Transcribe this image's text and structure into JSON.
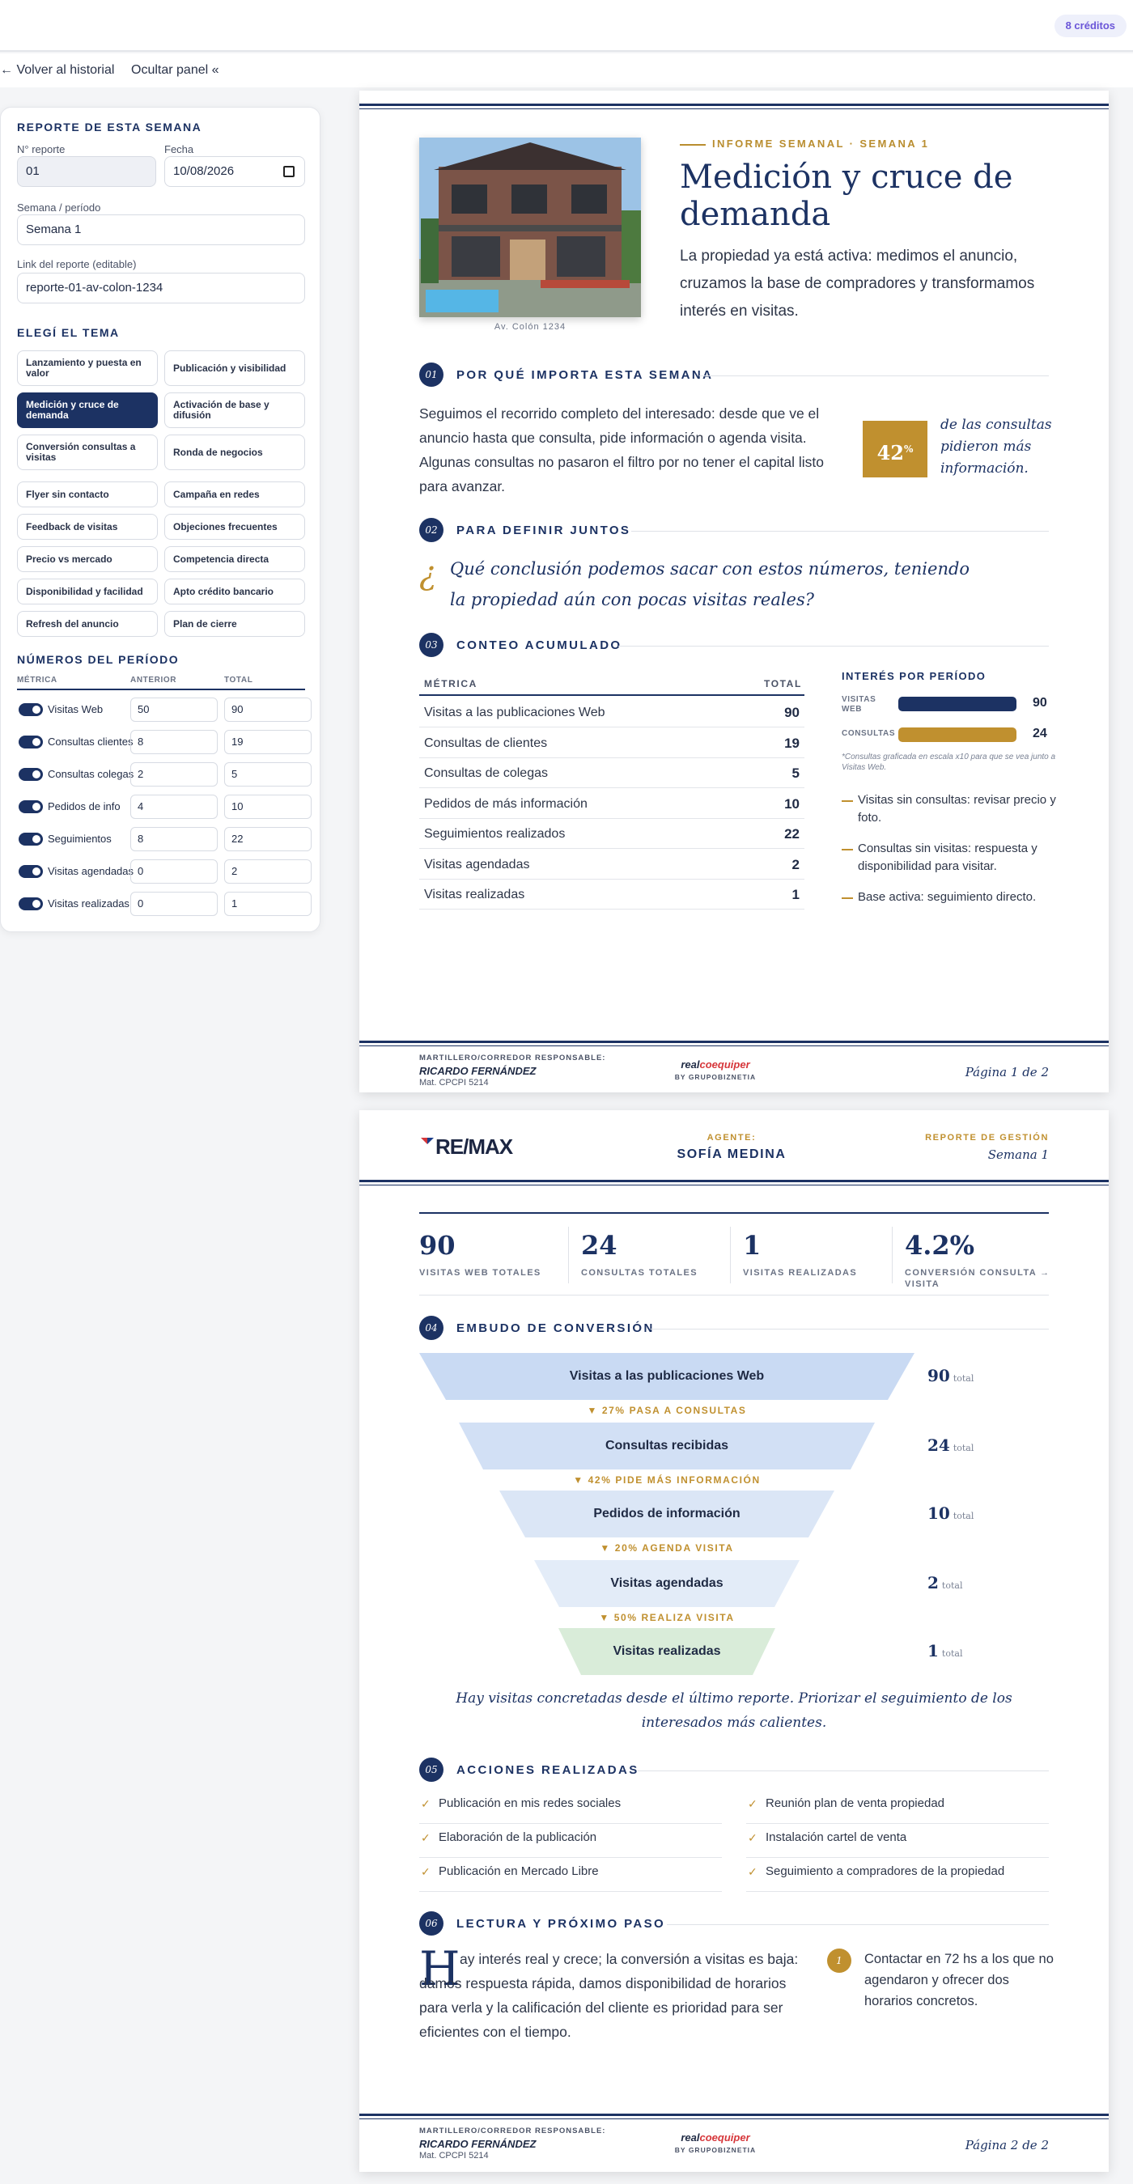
{
  "topbar": {
    "credits": "8 créditos"
  },
  "nav": {
    "back": "← Volver al historial",
    "hide_panel": "Ocultar panel «"
  },
  "sidebar": {
    "report_heading": "REPORTE DE ESTA SEMANA",
    "report_number_label": "N° reporte",
    "report_number_value": "01",
    "date_label": "Fecha",
    "date_value": "10/08/2026",
    "week_label": "Semana / período",
    "week_value": "Semana 1",
    "link_label": "Link del reporte (editable)",
    "link_value": "reporte-01-av-colon-1234",
    "topic_heading": "ELEGÍ EL TEMA",
    "topics": [
      "Lanzamiento y puesta en valor",
      "Publicación y visibilidad",
      "Medición y cruce de demanda",
      "Activación de base y difusión",
      "Conversión consultas a visitas",
      "Ronda de negocios",
      "Flyer sin contacto",
      "Campaña en redes",
      "Feedback de visitas",
      "Objeciones frecuentes",
      "Precio vs mercado",
      "Competencia directa",
      "Disponibilidad y facilidad",
      "Apto crédito bancario",
      "Refresh del anuncio",
      "Plan de cierre"
    ],
    "active_topic": "Medición y cruce de demanda",
    "numbers_heading": "NÚMEROS DEL PERÍODO",
    "metric_columns": [
      "MÉTRICA",
      "ANTERIOR",
      "TOTAL"
    ],
    "metrics": [
      {
        "name": "Visitas Web",
        "prev": "50",
        "total": "90"
      },
      {
        "name": "Consultas clientes",
        "prev": "8",
        "total": "19"
      },
      {
        "name": "Consultas colegas",
        "prev": "2",
        "total": "5"
      },
      {
        "name": "Pedidos de info",
        "prev": "4",
        "total": "10"
      },
      {
        "name": "Seguimientos",
        "prev": "8",
        "total": "22"
      },
      {
        "name": "Visitas agendadas",
        "prev": "0",
        "total": "2"
      },
      {
        "name": "Visitas realizadas",
        "prev": "0",
        "total": "1"
      }
    ]
  },
  "page1": {
    "photo_caption": "Av. Colón 1234",
    "eyebrow": "INFORME SEMANAL · SEMANA 1",
    "title": "Medición y cruce de demanda",
    "lead": "La propiedad ya está activa: medimos el anuncio, cruzamos la base de compradores y transformamos interés en visitas.",
    "s1_num": "01",
    "s1_title": "POR QUÉ IMPORTA ESTA SEMANA",
    "s1_text": "Seguimos el recorrido completo del interesado: desde que ve el anuncio hasta que consulta, pide información o agenda visita. Algunas consultas no pasaron el filtro por no tener el capital listo para avanzar.",
    "stat_value": "42",
    "stat_unit": "%",
    "stat_caption": "de las consultas pidieron más información.",
    "s2_num": "02",
    "s2_title": "PARA DEFINIR JUNTOS",
    "question_mark": "¿",
    "question": "Qué conclusión podemos sacar con estos números, teniendo la propiedad aún con pocas visitas reales?",
    "s3_num": "03",
    "s3_title": "CONTEO ACUMULADO",
    "table_head": [
      "MÉTRICA",
      "TOTAL"
    ],
    "table_rows": [
      {
        "label": "Visitas a las publicaciones Web",
        "value": "90"
      },
      {
        "label": "Consultas de clientes",
        "value": "19"
      },
      {
        "label": "Consultas de colegas",
        "value": "5"
      },
      {
        "label": "Pedidos de más información",
        "value": "10"
      },
      {
        "label": "Seguimientos realizados",
        "value": "22"
      },
      {
        "label": "Visitas agendadas",
        "value": "2"
      },
      {
        "label": "Visitas realizadas",
        "value": "1"
      }
    ],
    "interest_title": "INTERÉS POR PERÍODO",
    "interest": [
      {
        "label": "VISITAS WEB",
        "value": "90",
        "fill": 1.0,
        "color": "#1c3263"
      },
      {
        "label": "CONSULTAS",
        "value": "24",
        "fill": 1.0,
        "color": "#c0902f"
      }
    ],
    "interest_note": "*Consultas graficada en escala x10 para que se vea junto a Visitas Web.",
    "bullets": [
      "Visitas sin consultas: revisar precio y foto.",
      "Consultas sin visitas: respuesta y disponibilidad para visitar.",
      "Base activa: seguimiento directo."
    ],
    "footer_label": "MARTILLERO/CORREDOR RESPONSABLE:",
    "footer_name": "RICARDO FERNÁNDEZ",
    "footer_mat": "Mat. CPCPI 5214",
    "footer_logo_a": "real",
    "footer_logo_b": "coequiper",
    "footer_by": "BY GRUPOBIZNETIA",
    "footer_page": "Página 1 de 2"
  },
  "page2": {
    "brand": "RE/MAX",
    "agent_label": "AGENTE:",
    "agent_name": "SOFÍA MEDINA",
    "report_label": "REPORTE DE GESTIÓN",
    "report_week": "Semana 1",
    "kpis": [
      {
        "value": "90",
        "label": "VISITAS WEB TOTALES"
      },
      {
        "value": "24",
        "label": "CONSULTAS TOTALES"
      },
      {
        "value": "1",
        "label": "VISITAS REALIZADAS"
      },
      {
        "value": "4.2%",
        "label": "CONVERSIÓN CONSULTA → VISITA"
      }
    ],
    "s4_num": "04",
    "s4_title": "EMBUDO DE CONVERSIÓN",
    "funnel": [
      {
        "label": "Visitas a las publicaciones Web",
        "value": "90",
        "color": "#c9daf3"
      },
      {
        "label": "Consultas recibidas",
        "value": "24",
        "color": "#d2e0f5"
      },
      {
        "label": "Pedidos de información",
        "value": "10",
        "color": "#dbe6f6"
      },
      {
        "label": "Visitas agendadas",
        "value": "2",
        "color": "#e3ecf8"
      },
      {
        "label": "Visitas realizadas",
        "value": "1",
        "color": "#d9ecd9"
      }
    ],
    "funnel_steps": [
      "▼ 27% PASA A CONSULTAS",
      "▼ 42% PIDE MÁS INFORMACIÓN",
      "▼ 20% AGENDA VISITA",
      "▼ 50% REALIZA VISITA"
    ],
    "total_word": "total",
    "funnel_note": "Hay visitas concretadas desde el último reporte. Priorizar el seguimiento de los interesados más calientes.",
    "s5_num": "05",
    "s5_title": "ACCIONES REALIZADAS",
    "actions_left": [
      "Publicación en mis redes sociales",
      "Elaboración de la publicación",
      "Publicación en Mercado Libre"
    ],
    "actions_right": [
      "Reunión plan de venta propiedad",
      "Instalación cartel de venta",
      "Seguimiento a compradores de la propiedad"
    ],
    "s6_num": "06",
    "s6_title": "LECTURA Y PRÓXIMO PASO",
    "dropcap": "H",
    "lectura": "ay interés real y crece; la conversión a visitas es baja: damos respuesta rápida, damos disponibilidad de horarios para verla y la calificación del cliente es prioridad para ser eficientes con el tiempo.",
    "step_num": "1",
    "step_text": "Contactar en 72 hs a los que no agendaron y ofrecer dos horarios concretos.",
    "footer_label": "MARTILLERO/CORREDOR RESPONSABLE:",
    "footer_name": "RICARDO FERNÁNDEZ",
    "footer_mat": "Mat. CPCPI 5214",
    "footer_logo_a": "real",
    "footer_logo_b": "coequiper",
    "footer_by": "BY GRUPOBIZNETIA",
    "footer_page": "Página 2 de 2"
  }
}
